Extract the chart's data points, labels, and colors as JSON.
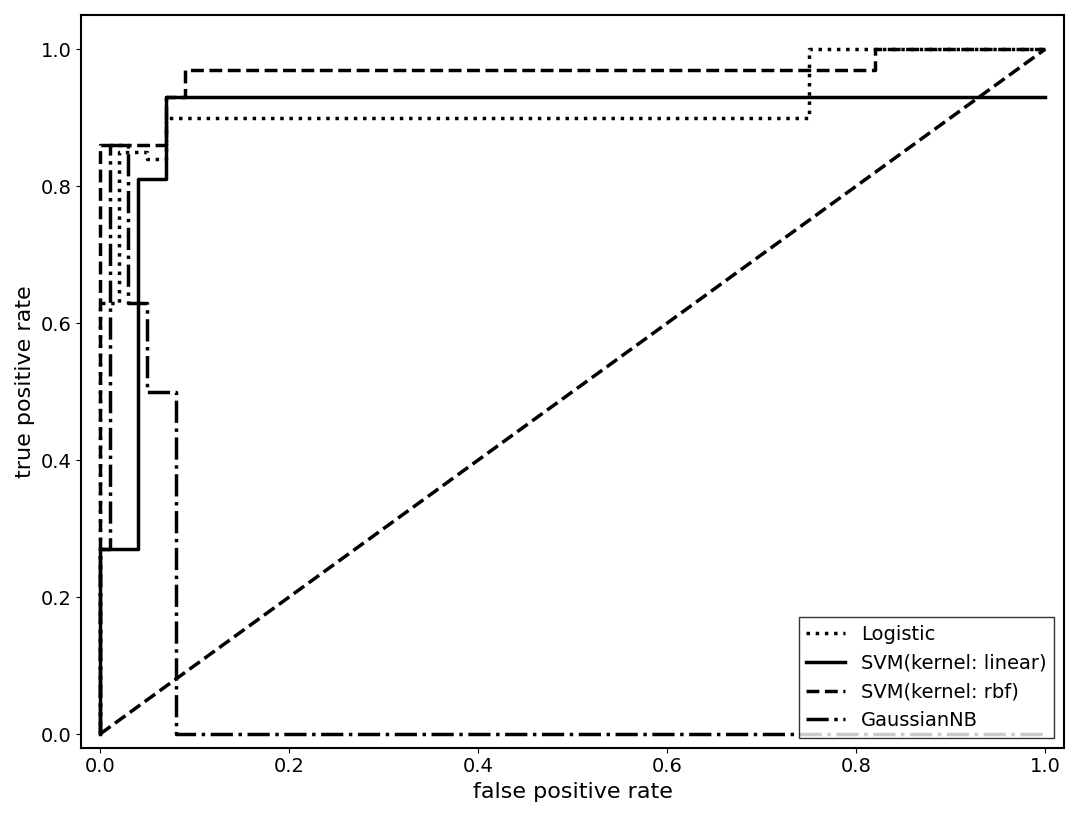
{
  "xlabel": "false positive rate",
  "ylabel": "true positive rate",
  "xlim": [
    -0.02,
    1.02
  ],
  "ylim": [
    -0.02,
    1.05
  ],
  "xticks": [
    0.0,
    0.2,
    0.4,
    0.6,
    0.8,
    1.0
  ],
  "yticks": [
    0.0,
    0.2,
    0.4,
    0.6,
    0.8,
    1.0
  ],
  "diagonal": {
    "x": [
      0.0,
      1.0
    ],
    "y": [
      0.0,
      1.0
    ],
    "linestyle": "--",
    "linewidth": 2.5,
    "color": "#000000"
  },
  "logistic": {
    "x": [
      0.0,
      0.0,
      0.02,
      0.02,
      0.05,
      0.05,
      0.07,
      0.07,
      0.09,
      0.09,
      0.13,
      0.13,
      0.75,
      0.75,
      1.0
    ],
    "y": [
      0.0,
      0.63,
      0.63,
      0.85,
      0.85,
      0.84,
      0.84,
      0.9,
      0.9,
      0.9,
      0.9,
      0.9,
      0.9,
      1.0,
      1.0
    ],
    "linestyle": ":",
    "linewidth": 2.5,
    "color": "#000000",
    "label": "Logistic"
  },
  "svm_linear": {
    "x": [
      0.0,
      0.0,
      0.04,
      0.04,
      0.07,
      0.07,
      1.0
    ],
    "y": [
      0.0,
      0.27,
      0.27,
      0.81,
      0.81,
      0.93,
      0.93
    ],
    "linestyle": "-",
    "linewidth": 2.5,
    "color": "#000000",
    "label": "SVM(kernel: linear)"
  },
  "svm_rbf": {
    "x": [
      0.0,
      0.0,
      0.02,
      0.02,
      0.07,
      0.07,
      0.09,
      0.09,
      0.75,
      0.75,
      0.82,
      0.82,
      1.0
    ],
    "y": [
      0.0,
      0.86,
      0.86,
      0.86,
      0.86,
      0.93,
      0.93,
      0.97,
      0.97,
      0.97,
      0.97,
      1.0,
      1.0
    ],
    "linestyle": "--",
    "linewidth": 2.5,
    "color": "#000000",
    "label": "SVM(kernel: rbf)"
  },
  "gaussiannb": {
    "x": [
      0.0,
      0.0,
      0.01,
      0.01,
      0.03,
      0.03,
      0.05,
      0.05,
      0.08,
      0.08,
      1.0
    ],
    "y": [
      0.0,
      0.27,
      0.27,
      0.86,
      0.86,
      0.63,
      0.63,
      0.5,
      0.5,
      0.0,
      0.0
    ],
    "linestyle": "-.",
    "linewidth": 2.5,
    "color": "#000000",
    "label": "GaussianNB"
  },
  "legend_loc": "lower right",
  "fontsize_label": 16,
  "fontsize_tick": 14,
  "fontsize_legend": 14
}
